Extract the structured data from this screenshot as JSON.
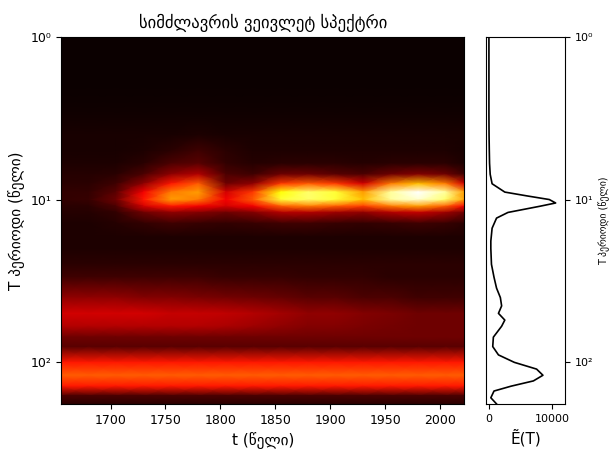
{
  "chart_data": [
    {
      "type": "heatmap",
      "title": "სიმძლავრის ვეივლეტ სპექტრი",
      "x_label": "t (წელი)",
      "y_label": "T პერიოდი (წელი)",
      "log": "y",
      "x": [
        1655,
        1680,
        1705,
        1730,
        1755,
        1780,
        1805,
        1830,
        1855,
        1880,
        1905,
        1930,
        1955,
        1980,
        2005,
        2022
      ],
      "y": [
        1,
        1.5,
        2,
        3,
        4,
        5,
        6,
        7,
        8,
        9,
        10,
        11,
        12,
        14,
        17,
        20,
        25,
        30,
        40,
        50,
        60,
        70,
        80,
        100,
        120,
        140,
        160,
        180
      ],
      "cells": [
        [
          0,
          0,
          0,
          0,
          0,
          0,
          0,
          0,
          0,
          0,
          0,
          0,
          0,
          0,
          0,
          0
        ],
        [
          0,
          0,
          0,
          0,
          0,
          0,
          0,
          0,
          0,
          0,
          0,
          0,
          0,
          0,
          0,
          0
        ],
        [
          0,
          0,
          0,
          0,
          0,
          0,
          0,
          0,
          0,
          0,
          0,
          0,
          0,
          0,
          0,
          0
        ],
        [
          0.01,
          0.01,
          0.01,
          0.01,
          0.01,
          0.01,
          0.01,
          0.01,
          0.01,
          0.01,
          0.01,
          0.01,
          0.01,
          0.01,
          0.01,
          0.01
        ],
        [
          0.02,
          0.02,
          0.02,
          0.02,
          0.02,
          0.03,
          0.02,
          0.02,
          0.02,
          0.02,
          0.02,
          0.02,
          0.02,
          0.02,
          0.02,
          0.02
        ],
        [
          0.02,
          0.02,
          0.02,
          0.03,
          0.05,
          0.08,
          0.05,
          0.03,
          0.03,
          0.03,
          0.03,
          0.03,
          0.03,
          0.03,
          0.03,
          0.02
        ],
        [
          0.03,
          0.03,
          0.03,
          0.05,
          0.1,
          0.12,
          0.06,
          0.04,
          0.05,
          0.05,
          0.05,
          0.04,
          0.05,
          0.05,
          0.05,
          0.03
        ],
        [
          0.04,
          0.04,
          0.05,
          0.1,
          0.2,
          0.25,
          0.1,
          0.08,
          0.15,
          0.15,
          0.12,
          0.1,
          0.15,
          0.18,
          0.15,
          0.08
        ],
        [
          0.05,
          0.05,
          0.08,
          0.2,
          0.4,
          0.5,
          0.15,
          0.2,
          0.45,
          0.5,
          0.45,
          0.3,
          0.55,
          0.65,
          0.55,
          0.3
        ],
        [
          0.06,
          0.06,
          0.12,
          0.35,
          0.55,
          0.6,
          0.3,
          0.45,
          0.75,
          0.85,
          0.8,
          0.6,
          0.9,
          1.0,
          0.9,
          0.6
        ],
        [
          0.06,
          0.07,
          0.15,
          0.4,
          0.6,
          0.55,
          0.35,
          0.5,
          0.8,
          0.85,
          0.8,
          0.65,
          0.9,
          0.95,
          0.85,
          0.6
        ],
        [
          0.05,
          0.05,
          0.1,
          0.3,
          0.4,
          0.35,
          0.3,
          0.35,
          0.5,
          0.55,
          0.5,
          0.45,
          0.55,
          0.6,
          0.5,
          0.35
        ],
        [
          0.04,
          0.04,
          0.06,
          0.15,
          0.2,
          0.18,
          0.15,
          0.18,
          0.25,
          0.25,
          0.22,
          0.2,
          0.25,
          0.28,
          0.22,
          0.15
        ],
        [
          0.03,
          0.03,
          0.04,
          0.06,
          0.08,
          0.07,
          0.06,
          0.07,
          0.08,
          0.08,
          0.07,
          0.06,
          0.07,
          0.08,
          0.07,
          0.05
        ],
        [
          0.03,
          0.03,
          0.03,
          0.03,
          0.03,
          0.03,
          0.03,
          0.03,
          0.03,
          0.03,
          0.03,
          0.03,
          0.03,
          0.03,
          0.03,
          0.03
        ],
        [
          0.03,
          0.03,
          0.03,
          0.03,
          0.03,
          0.03,
          0.03,
          0.03,
          0.03,
          0.03,
          0.03,
          0.03,
          0.03,
          0.03,
          0.03,
          0.03
        ],
        [
          0.05,
          0.05,
          0.05,
          0.05,
          0.05,
          0.05,
          0.05,
          0.05,
          0.05,
          0.05,
          0.05,
          0.05,
          0.05,
          0.05,
          0.05,
          0.05
        ],
        [
          0.08,
          0.08,
          0.08,
          0.08,
          0.08,
          0.08,
          0.07,
          0.07,
          0.07,
          0.06,
          0.06,
          0.06,
          0.05,
          0.05,
          0.05,
          0.05
        ],
        [
          0.2,
          0.2,
          0.2,
          0.18,
          0.18,
          0.17,
          0.16,
          0.15,
          0.14,
          0.12,
          0.12,
          0.1,
          0.1,
          0.08,
          0.08,
          0.08
        ],
        [
          0.3,
          0.3,
          0.3,
          0.3,
          0.28,
          0.28,
          0.27,
          0.25,
          0.23,
          0.2,
          0.2,
          0.18,
          0.17,
          0.15,
          0.15,
          0.15
        ],
        [
          0.25,
          0.25,
          0.25,
          0.25,
          0.25,
          0.25,
          0.24,
          0.22,
          0.2,
          0.18,
          0.18,
          0.17,
          0.16,
          0.15,
          0.15,
          0.15
        ],
        [
          0.15,
          0.15,
          0.15,
          0.15,
          0.15,
          0.15,
          0.15,
          0.15,
          0.15,
          0.15,
          0.15,
          0.15,
          0.15,
          0.15,
          0.15,
          0.15
        ],
        [
          0.12,
          0.12,
          0.12,
          0.12,
          0.12,
          0.12,
          0.12,
          0.12,
          0.12,
          0.12,
          0.12,
          0.12,
          0.12,
          0.12,
          0.12,
          0.12
        ],
        [
          0.4,
          0.4,
          0.4,
          0.4,
          0.4,
          0.4,
          0.4,
          0.4,
          0.4,
          0.4,
          0.4,
          0.4,
          0.4,
          0.4,
          0.4,
          0.4
        ],
        [
          0.5,
          0.5,
          0.5,
          0.5,
          0.5,
          0.5,
          0.5,
          0.5,
          0.5,
          0.5,
          0.5,
          0.5,
          0.5,
          0.5,
          0.5,
          0.5
        ],
        [
          0.4,
          0.4,
          0.4,
          0.4,
          0.4,
          0.4,
          0.4,
          0.4,
          0.4,
          0.4,
          0.4,
          0.4,
          0.4,
          0.4,
          0.4,
          0.4
        ],
        [
          0.1,
          0.1,
          0.1,
          0.1,
          0.1,
          0.1,
          0.1,
          0.1,
          0.1,
          0.1,
          0.1,
          0.1,
          0.1,
          0.1,
          0.1,
          0.1
        ],
        [
          0.05,
          0.05,
          0.05,
          0.05,
          0.05,
          0.05,
          0.05,
          0.05,
          0.05,
          0.05,
          0.05,
          0.05,
          0.05,
          0.05,
          0.05,
          0.05
        ]
      ],
      "xlim": [
        1655,
        2022
      ],
      "xticks": [
        1700,
        1750,
        1800,
        1850,
        1900,
        1950,
        2000
      ],
      "ylim": [
        180,
        1
      ],
      "yticks": [
        {
          "value": 1,
          "label": "10⁰"
        },
        {
          "value": 10,
          "label": "10¹"
        },
        {
          "value": 100,
          "label": "10²"
        }
      ]
    },
    {
      "type": "line",
      "x_label": "Ẽ(T)",
      "y_label": "T პერიოდი (წელი)",
      "log": "y",
      "orientation": "horizontal",
      "color": "#000000",
      "periods": [
        1,
        2,
        3,
        4,
        5,
        6,
        7,
        8,
        9,
        9.5,
        10,
        10.5,
        11,
        12,
        13,
        15,
        18,
        20,
        25,
        30,
        35,
        40,
        45,
        50,
        55,
        60,
        70,
        80,
        90,
        100,
        110,
        120,
        130,
        140,
        150,
        165,
        180
      ],
      "values": [
        0,
        0,
        0,
        20,
        60,
        100,
        200,
        500,
        2500,
        6000,
        9500,
        10500,
        8000,
        3000,
        1200,
        500,
        300,
        300,
        400,
        800,
        1200,
        1800,
        2000,
        1500,
        2500,
        2000,
        700,
        600,
        1500,
        4000,
        7500,
        8500,
        7000,
        3500,
        800,
        300,
        1200
      ],
      "xlim": [
        -500,
        12000
      ],
      "xticks": [
        0,
        10000
      ],
      "ylim": [
        180,
        1
      ],
      "yticks": [
        {
          "value": 1,
          "label": "10⁰"
        },
        {
          "value": 10,
          "label": "10¹"
        },
        {
          "value": 100,
          "label": "10²"
        }
      ]
    }
  ]
}
